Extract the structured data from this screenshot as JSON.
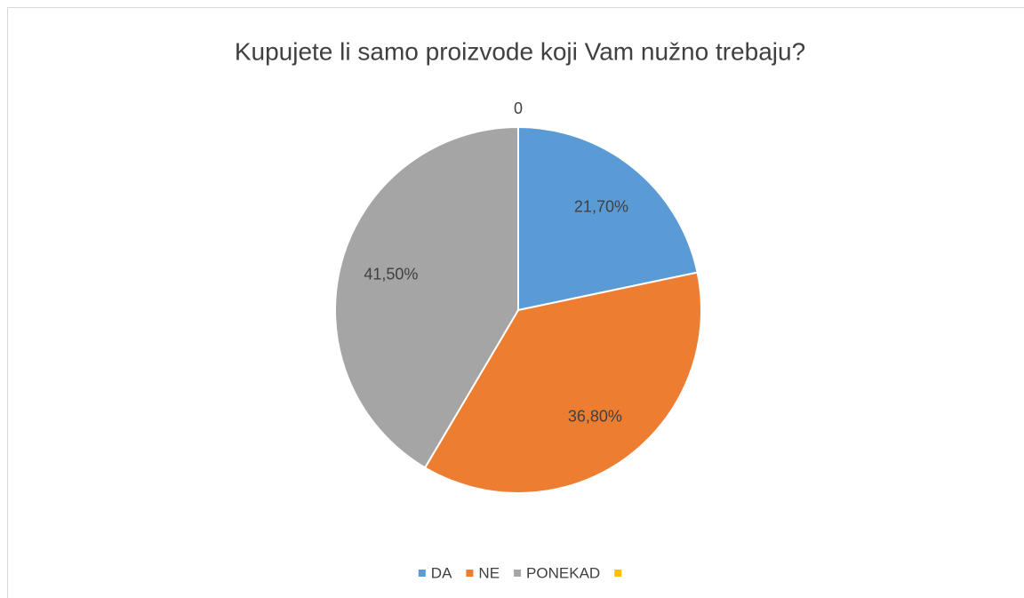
{
  "chart_data": {
    "type": "pie",
    "title": "Kupujete li samo proizvode koji Vam nužno trebaju?",
    "categories": [
      "DA",
      "NE",
      "PONEKAD",
      null
    ],
    "values": [
      21.7,
      36.8,
      41.5,
      0
    ],
    "value_labels": [
      "21,70%",
      "36,80%",
      "41,50%",
      "0"
    ],
    "colors": [
      "#5b9bd5",
      "#ed7d31",
      "#a5a5a5",
      "#ffc000"
    ],
    "legend": "bottom"
  }
}
